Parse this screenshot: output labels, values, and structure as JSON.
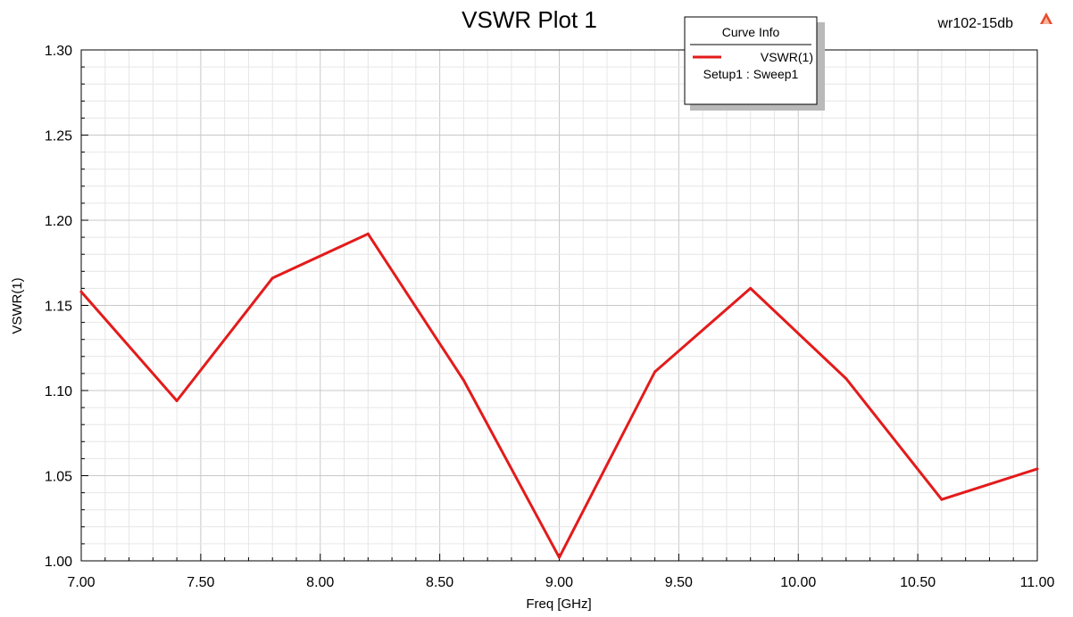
{
  "chart_data": {
    "type": "line",
    "title": "VSWR Plot 1",
    "project_label": "wr102-15db",
    "xlabel": "Freq [GHz]",
    "ylabel": "VSWR(1)",
    "xlim": [
      7.0,
      11.0
    ],
    "ylim": [
      1.0,
      1.3
    ],
    "x_ticks": [
      "7.00",
      "7.50",
      "8.00",
      "8.50",
      "9.00",
      "9.50",
      "10.00",
      "10.50",
      "11.00"
    ],
    "y_ticks": [
      "1.00",
      "1.05",
      "1.10",
      "1.15",
      "1.20",
      "1.25",
      "1.30"
    ],
    "grid": true,
    "legend": {
      "title": "Curve Info",
      "placement": "top-right",
      "entries": [
        {
          "name": "VSWR(1)",
          "sub": "Setup1 : Sweep1"
        }
      ]
    },
    "series": [
      {
        "name": "VSWR(1)",
        "color": "#e31b1b",
        "x": [
          7.0,
          7.4,
          7.8,
          8.2,
          8.6,
          9.0,
          9.4,
          9.8,
          10.2,
          10.6,
          11.0
        ],
        "values": [
          1.158,
          1.094,
          1.166,
          1.192,
          1.106,
          1.002,
          1.111,
          1.16,
          1.107,
          1.036,
          1.054
        ]
      }
    ]
  }
}
